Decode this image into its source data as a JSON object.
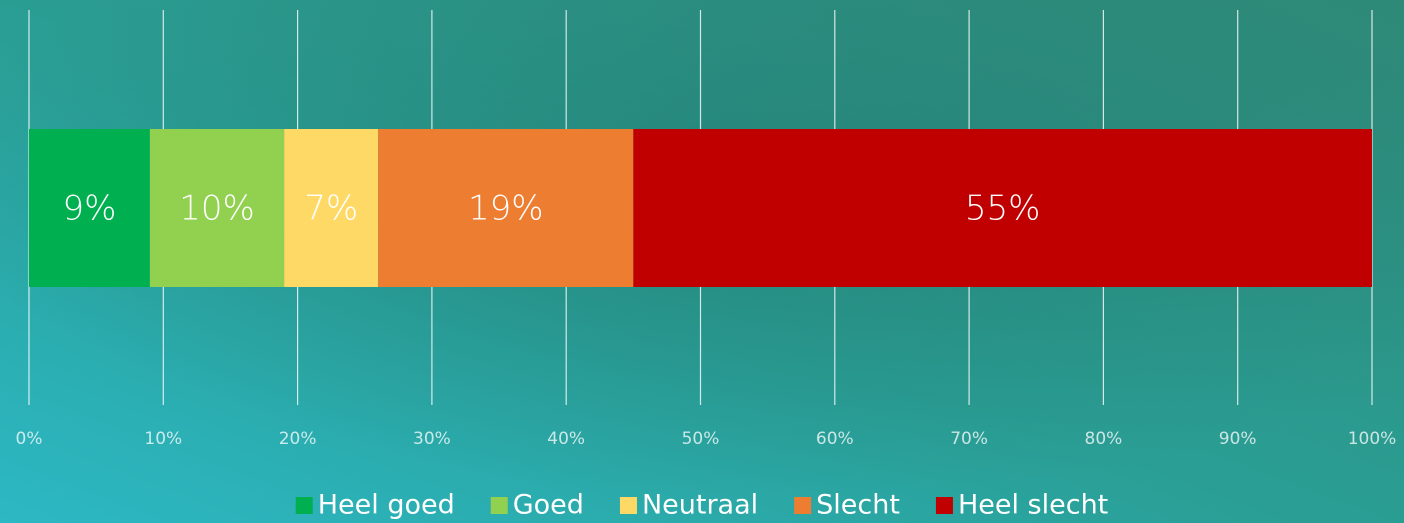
{
  "chart_data": {
    "type": "bar",
    "orientation": "horizontal",
    "stacked": true,
    "categories": [
      null
    ],
    "series": [
      {
        "name": "Heel goed",
        "color": "#00b050",
        "values": [
          9
        ],
        "value_labels": [
          "9%"
        ]
      },
      {
        "name": "Goed",
        "color": "#92d050",
        "values": [
          10
        ],
        "value_labels": [
          "10%"
        ]
      },
      {
        "name": "Neutraal",
        "color": "#ffd966",
        "values": [
          7
        ],
        "value_labels": [
          "7%"
        ]
      },
      {
        "name": "Slecht",
        "color": "#ed7d31",
        "values": [
          19
        ],
        "value_labels": [
          "19%"
        ]
      },
      {
        "name": "Heel slecht",
        "color": "#c00000",
        "values": [
          55
        ],
        "value_labels": [
          "55%"
        ]
      }
    ],
    "xlim": [
      0,
      100
    ],
    "xticks": [
      {
        "value": 0,
        "label": "0%"
      },
      {
        "value": 10,
        "label": "10%"
      },
      {
        "value": 20,
        "label": "20%"
      },
      {
        "value": 30,
        "label": "30%"
      },
      {
        "value": 40,
        "label": "40%"
      },
      {
        "value": 50,
        "label": "50%"
      },
      {
        "value": 60,
        "label": "60%"
      },
      {
        "value": 70,
        "label": "70%"
      },
      {
        "value": 80,
        "label": "80%"
      },
      {
        "value": 90,
        "label": "90%"
      },
      {
        "value": 100,
        "label": "100%"
      }
    ],
    "grid": true,
    "legend": "bottom"
  }
}
